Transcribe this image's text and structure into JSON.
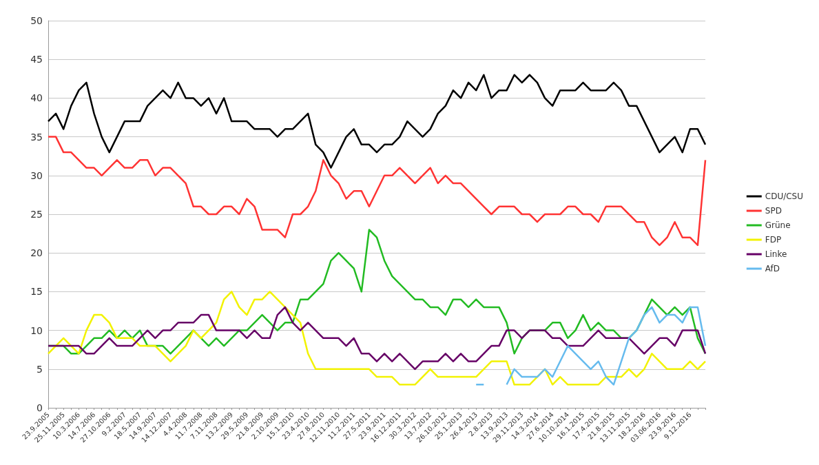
{
  "chart_data": {
    "type": "line",
    "categories": [
      "23.9.2005",
      null,
      "25.11.2005",
      null,
      "10.3.2006",
      null,
      "14.7.2006",
      null,
      "27.10.2006",
      null,
      "9.2.2007",
      null,
      "18.5.2007",
      null,
      "14.9.2007",
      null,
      "14.12.2007",
      null,
      "4.4.2008",
      null,
      "11.7.2008",
      null,
      "7.11.2008",
      null,
      "13.2.2009",
      null,
      "29.5.2009",
      null,
      "21.8.2009",
      null,
      "2.10.2009",
      null,
      "15.1.2010",
      null,
      "23.4.2010",
      null,
      "27.8.2010",
      null,
      "12.11.2010",
      null,
      "11.2.2011",
      null,
      "27.5.2011",
      null,
      "23.9.2011",
      null,
      "16.12.2011",
      null,
      "30.3.2012",
      null,
      "13.7.2012",
      null,
      "26.10.2012",
      null,
      "25.1.2013",
      null,
      "26.4.2013",
      null,
      "2.8.2013",
      null,
      "13.9.2013",
      null,
      "29.11.2013",
      null,
      "14.3.2014",
      null,
      "27.6.2014",
      null,
      "10.10.2014",
      null,
      "16.1.2015",
      null,
      "17.4.2015",
      null,
      "21.8.2015",
      null,
      "13.11.2015",
      null,
      "18.2.2016",
      null,
      "03.06.2016",
      null,
      "23.9.2016",
      null,
      "9.12.2016",
      null,
      null
    ],
    "series": [
      {
        "name": "CDU/CSU",
        "color": "#000000",
        "values": [
          37,
          38,
          36,
          39,
          41,
          42,
          38,
          35,
          33,
          35,
          37,
          37,
          37,
          39,
          40,
          41,
          40,
          42,
          40,
          40,
          39,
          40,
          38,
          40,
          37,
          37,
          37,
          36,
          36,
          36,
          35,
          36,
          36,
          37,
          38,
          34,
          33,
          31,
          33,
          35,
          36,
          34,
          34,
          33,
          34,
          34,
          35,
          37,
          36,
          35,
          36,
          38,
          39,
          41,
          40,
          42,
          41,
          43,
          40,
          41,
          41,
          43,
          42,
          43,
          42,
          40,
          39,
          41,
          41,
          41,
          42,
          41,
          41,
          41,
          42,
          41,
          39,
          39,
          37,
          35,
          33,
          34,
          35,
          33,
          36,
          36,
          34
        ]
      },
      {
        "name": "SPD",
        "color": "#ff3333",
        "values": [
          35,
          35,
          33,
          33,
          32,
          31,
          31,
          30,
          31,
          32,
          31,
          31,
          32,
          32,
          30,
          31,
          31,
          30,
          29,
          26,
          26,
          25,
          25,
          26,
          26,
          25,
          27,
          26,
          23,
          23,
          23,
          22,
          25,
          25,
          26,
          28,
          32,
          30,
          29,
          27,
          28,
          28,
          26,
          28,
          30,
          30,
          31,
          30,
          29,
          30,
          31,
          29,
          30,
          29,
          29,
          28,
          27,
          26,
          25,
          26,
          26,
          26,
          25,
          25,
          24,
          25,
          25,
          25,
          26,
          26,
          25,
          25,
          24,
          26,
          26,
          26,
          25,
          24,
          24,
          22,
          21,
          22,
          24,
          22,
          22,
          21,
          32
        ]
      },
      {
        "name": "Grüne",
        "color": "#22bb22",
        "values": [
          8,
          8,
          8,
          7,
          7,
          8,
          9,
          9,
          10,
          9,
          10,
          9,
          10,
          8,
          8,
          8,
          7,
          8,
          9,
          10,
          9,
          8,
          9,
          8,
          9,
          10,
          10,
          11,
          12,
          11,
          10,
          11,
          11,
          14,
          14,
          15,
          16,
          19,
          20,
          19,
          18,
          15,
          23,
          22,
          19,
          17,
          16,
          15,
          14,
          14,
          13,
          13,
          12,
          14,
          14,
          13,
          14,
          13,
          13,
          13,
          11,
          7,
          9,
          10,
          10,
          10,
          11,
          11,
          9,
          10,
          12,
          10,
          11,
          10,
          10,
          9,
          9,
          10,
          12,
          14,
          13,
          12,
          13,
          12,
          13,
          9,
          7
        ]
      },
      {
        "name": "FDP",
        "color": "#f2f200",
        "values": [
          7,
          8,
          9,
          8,
          7,
          10,
          12,
          12,
          11,
          9,
          9,
          9,
          8,
          8,
          8,
          7,
          6,
          7,
          8,
          10,
          9,
          10,
          11,
          14,
          15,
          13,
          12,
          14,
          14,
          15,
          14,
          13,
          12,
          11,
          7,
          5,
          5,
          5,
          5,
          5,
          5,
          5,
          5,
          4,
          4,
          4,
          3,
          3,
          3,
          4,
          5,
          4,
          4,
          4,
          4,
          4,
          4,
          5,
          6,
          6,
          6,
          3,
          3,
          3,
          4,
          5,
          3,
          4,
          3,
          3,
          3,
          3,
          3,
          4,
          4,
          4,
          5,
          4,
          5,
          7,
          6,
          5,
          5,
          5,
          6,
          5,
          6
        ]
      },
      {
        "name": "Linke",
        "color": "#660066",
        "values": [
          8,
          8,
          8,
          8,
          8,
          7,
          7,
          8,
          9,
          8,
          8,
          8,
          9,
          10,
          9,
          10,
          10,
          11,
          11,
          11,
          12,
          12,
          10,
          10,
          10,
          10,
          9,
          10,
          9,
          9,
          12,
          13,
          11,
          10,
          11,
          10,
          9,
          9,
          9,
          8,
          9,
          7,
          7,
          6,
          7,
          6,
          7,
          6,
          5,
          6,
          6,
          6,
          7,
          6,
          7,
          6,
          6,
          7,
          8,
          8,
          10,
          10,
          9,
          10,
          10,
          10,
          9,
          9,
          8,
          8,
          8,
          9,
          10,
          9,
          9,
          9,
          9,
          8,
          7,
          8,
          9,
          9,
          8,
          10,
          10,
          10,
          7
        ]
      },
      {
        "name": "AfD",
        "color": "#66bbee",
        "values": [
          null,
          null,
          null,
          null,
          null,
          null,
          null,
          null,
          null,
          null,
          null,
          null,
          null,
          null,
          null,
          null,
          null,
          null,
          null,
          null,
          null,
          null,
          null,
          null,
          null,
          null,
          null,
          null,
          null,
          null,
          null,
          null,
          null,
          null,
          null,
          null,
          null,
          null,
          null,
          null,
          null,
          null,
          null,
          null,
          null,
          null,
          null,
          null,
          null,
          null,
          null,
          null,
          null,
          null,
          null,
          null,
          3,
          3,
          null,
          null,
          3,
          5,
          4,
          4,
          4,
          5,
          4,
          6,
          8,
          7,
          6,
          5,
          6,
          4,
          3,
          6,
          9,
          10,
          12,
          13,
          11,
          12,
          12,
          11,
          13,
          13,
          8
        ]
      }
    ],
    "ylim": [
      0,
      50
    ],
    "yticks": [
      0,
      5,
      10,
      15,
      20,
      25,
      30,
      35,
      40,
      45,
      50
    ],
    "grid": "y",
    "legend": "right",
    "marker": "none",
    "line_style": "solid"
  }
}
